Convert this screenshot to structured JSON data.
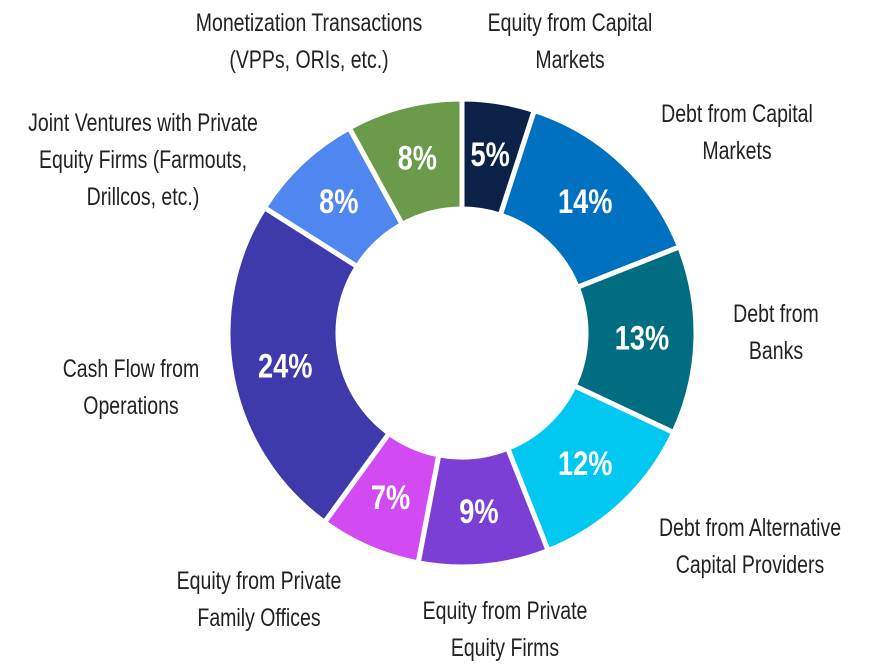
{
  "chart_data": {
    "type": "donut",
    "categories": [
      "Equity from Capital Markets",
      "Debt from Capital Markets",
      "Debt from Banks",
      "Debt from Alternative Capital Providers",
      "Equity from Private Equity Firms",
      "Equity from Private Family Offices",
      "Cash Flow from Operations",
      "Joint Ventures with Private Equity Firms (Farmouts, Drillcos, etc.)",
      "Monetization Transactions (VPPs, ORIs, etc.)"
    ],
    "values": [
      5,
      14,
      13,
      12,
      9,
      7,
      24,
      8,
      8
    ],
    "value_labels": [
      "5%",
      "14%",
      "13%",
      "12%",
      "9%",
      "7%",
      "24%",
      "8%",
      "8%"
    ],
    "colors": [
      "#0b2147",
      "#0070c0",
      "#006e80",
      "#00c8f0",
      "#7b3fd6",
      "#d24bf2",
      "#3f3aab",
      "#4f86f0",
      "#6a9a4a"
    ]
  }
}
